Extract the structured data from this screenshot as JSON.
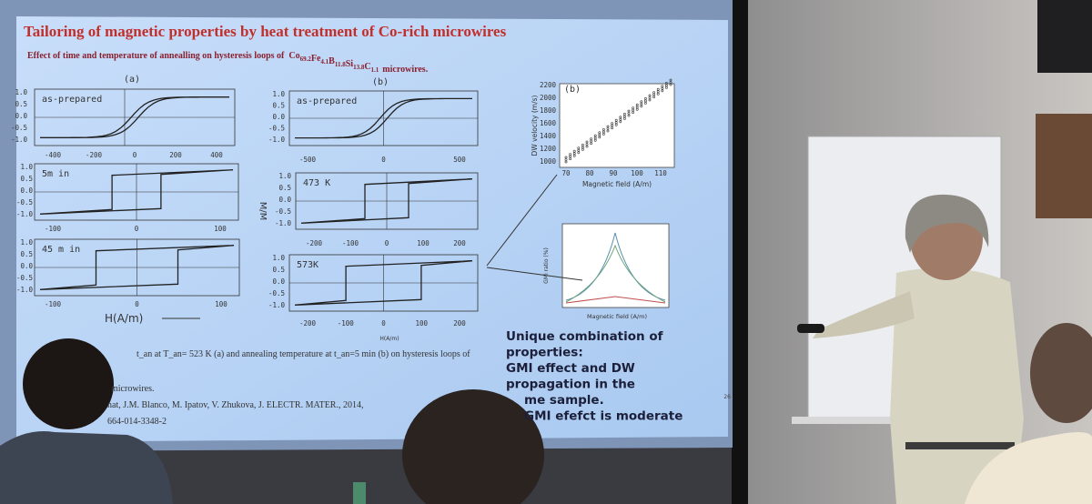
{
  "slide": {
    "title": "Tailoring of magnetic properties by heat treatment of Co-rich microwires",
    "subtitle": "Effect of time and temperature of annealling on hysteresis loops of",
    "formula": [
      {
        "el": "Co",
        "sub": "69.2"
      },
      {
        "el": "Fe",
        "sub": "4.1"
      },
      {
        "el": "B",
        "sub": "11.8"
      },
      {
        "el": "Si",
        "sub": "13.8"
      },
      {
        "el": "C",
        "sub": "1.1"
      }
    ],
    "subtitle_end": "microwires.",
    "panel_a": {
      "label": "(a)",
      "xlabel": "H(A/m)",
      "yticks": [
        "1.0",
        "0.5",
        "0.0",
        "-0.5",
        "-1.0"
      ],
      "plots": [
        {
          "tag": "as-prepared",
          "xticks": [
            "-400",
            "-200",
            "0",
            "200",
            "400"
          ]
        },
        {
          "tag": "5m in",
          "xticks": [
            "-100",
            "0",
            "100"
          ]
        },
        {
          "tag": "45 m in",
          "xticks": [
            "-100",
            "0",
            "100"
          ]
        }
      ]
    },
    "panel_b": {
      "label": "(b)",
      "xlabel": "H(A/m)",
      "ylabel": "M/M",
      "yticks": [
        "1.0",
        "0.5",
        "0.0",
        "-0.5",
        "-1.0"
      ],
      "plots": [
        {
          "tag": "as-prepared",
          "xticks": [
            "-500",
            "0",
            "500"
          ]
        },
        {
          "tag": "473 K",
          "xticks": [
            "-200",
            "-100",
            "0",
            "100",
            "200"
          ]
        },
        {
          "tag": "573K",
          "xticks": [
            "-200",
            "-100",
            "0",
            "100",
            "200"
          ]
        }
      ]
    },
    "dw_plot": {
      "label": "(b)",
      "ylabel": "DW velocity (m/s)",
      "xlabel": "Magnetic field (A/m)",
      "yticks": [
        "2200",
        "2000",
        "1800",
        "1600",
        "1400",
        "1200",
        "1000"
      ],
      "xticks": [
        "70",
        "80",
        "90",
        "100",
        "110"
      ]
    },
    "gmi_plot": {
      "ylabel": "GMI ratio (%)",
      "xlabel": "Magnetic field (A/m)"
    },
    "caption": [
      "t_an at T_an= 523 K (a) and annealing temperature at t_an=5 min (b) on hysteresis loops of",
      "microwires.",
      "nat, J.M. Blanco, M. Ipatov, V. Zhukova, J. ELECTR. MATER., 2014,",
      "664-014-3348-2"
    ],
    "highlight": [
      "Unique combination of",
      "properties:",
      "GMI effect and DW",
      "propagation in the",
      "me sample.",
      "GMI efefct is moderate"
    ],
    "page_number": "26"
  }
}
